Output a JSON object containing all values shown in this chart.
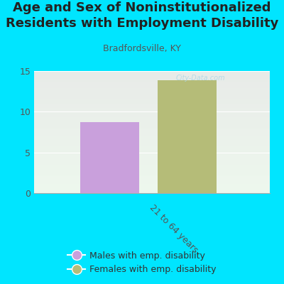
{
  "title": "Age and Sex of Noninstitutionalized\nResidents with Employment Disability",
  "subtitle": "Bradfordsville, KY",
  "categories": [
    "21 to 64 years"
  ],
  "male_values": [
    8.7
  ],
  "female_values": [
    13.9
  ],
  "male_color": "#c9a0dc",
  "female_color": "#b5bc78",
  "background_color": "#00e5ff",
  "ylim": [
    0,
    15
  ],
  "yticks": [
    0,
    5,
    10,
    15
  ],
  "title_fontsize": 13,
  "subtitle_fontsize": 9,
  "legend_label_male": "Males with emp. disability",
  "legend_label_female": "Females with emp. disability",
  "watermark": "City-Data.com",
  "tick_color": "#555555",
  "label_color": "#333333"
}
